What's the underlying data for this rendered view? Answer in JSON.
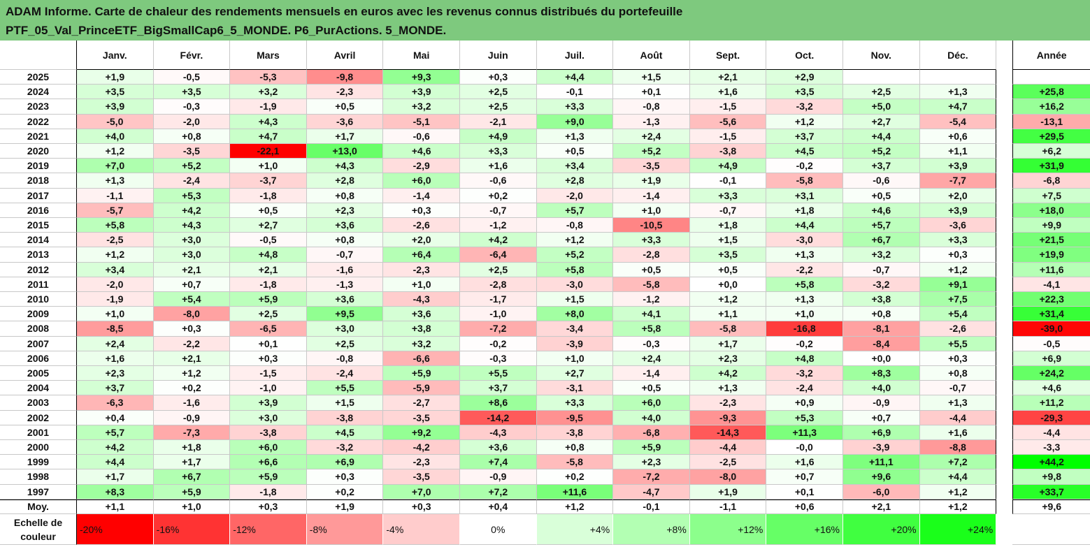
{
  "title": {
    "line1": "ADAM Informe. Carte de chaleur des rendements mensuels en euros avec les revenus connus distribués du portefeuille",
    "line2": "PTF_05_Val_PrinceETF_BigSmallCap6_5_MONDE. P6_PurActions. 5_MONDE."
  },
  "chart_data": {
    "type": "heatmap",
    "months": [
      "Janv.",
      "Févr.",
      "Mars",
      "Avril",
      "Mai",
      "Juin",
      "Juil.",
      "Août",
      "Sept.",
      "Oct.",
      "Nov.",
      "Déc."
    ],
    "year_header": "Année",
    "rows": [
      {
        "year": "2025",
        "values": [
          "+1,9",
          "-0,5",
          "-5,3",
          "-9,8",
          "+9,3",
          "+0,3",
          "+4,4",
          "+1,5",
          "+2,1",
          "+2,9",
          "",
          ""
        ],
        "annual": ""
      },
      {
        "year": "2024",
        "values": [
          "+3,5",
          "+3,5",
          "+3,2",
          "-2,3",
          "+3,9",
          "+2,5",
          "-0,1",
          "+0,1",
          "+1,6",
          "+3,5",
          "+2,5",
          "+1,3"
        ],
        "annual": "+25,8"
      },
      {
        "year": "2023",
        "values": [
          "+3,9",
          "-0,3",
          "-1,9",
          "+0,5",
          "+3,2",
          "+2,5",
          "+3,3",
          "-0,8",
          "-1,5",
          "-3,2",
          "+5,0",
          "+4,7"
        ],
        "annual": "+16,2"
      },
      {
        "year": "2022",
        "values": [
          "-5,0",
          "-2,0",
          "+4,3",
          "-3,6",
          "-5,1",
          "-2,1",
          "+9,0",
          "-1,3",
          "-5,6",
          "+1,2",
          "+2,7",
          "-5,4"
        ],
        "annual": "-13,1"
      },
      {
        "year": "2021",
        "values": [
          "+4,0",
          "+0,8",
          "+4,7",
          "+1,7",
          "-0,6",
          "+4,9",
          "+1,3",
          "+2,4",
          "-1,5",
          "+3,7",
          "+4,4",
          "+0,6"
        ],
        "annual": "+29,5"
      },
      {
        "year": "2020",
        "values": [
          "+1,2",
          "-3,5",
          "-22,1",
          "+13,0",
          "+4,6",
          "+3,3",
          "+0,5",
          "+5,2",
          "-3,8",
          "+4,5",
          "+5,2",
          "+1,1"
        ],
        "annual": "+6,2"
      },
      {
        "year": "2019",
        "values": [
          "+7,0",
          "+5,2",
          "+1,0",
          "+4,3",
          "-2,9",
          "+1,6",
          "+3,4",
          "-3,5",
          "+4,9",
          "-0,2",
          "+3,7",
          "+3,9"
        ],
        "annual": "+31,9"
      },
      {
        "year": "2018",
        "values": [
          "+1,3",
          "-2,4",
          "-3,7",
          "+2,8",
          "+6,0",
          "-0,6",
          "+2,8",
          "+1,9",
          "-0,1",
          "-5,8",
          "-0,6",
          "-7,7"
        ],
        "annual": "-6,8"
      },
      {
        "year": "2017",
        "values": [
          "-1,1",
          "+5,3",
          "-1,8",
          "+0,8",
          "-1,4",
          "+0,2",
          "-2,0",
          "-1,4",
          "+3,3",
          "+3,1",
          "+0,5",
          "+2,0"
        ],
        "annual": "+7,5"
      },
      {
        "year": "2016",
        "values": [
          "-5,7",
          "+4,2",
          "+0,5",
          "+2,3",
          "+0,3",
          "-0,7",
          "+5,7",
          "+1,0",
          "-0,7",
          "+1,8",
          "+4,6",
          "+3,9"
        ],
        "annual": "+18,0"
      },
      {
        "year": "2015",
        "values": [
          "+5,8",
          "+4,3",
          "+2,7",
          "+3,6",
          "-2,6",
          "-1,2",
          "-0,8",
          "-10,5",
          "+1,8",
          "+4,4",
          "+5,7",
          "-3,6"
        ],
        "annual": "+9,9"
      },
      {
        "year": "2014",
        "values": [
          "-2,5",
          "+3,0",
          "-0,5",
          "+0,8",
          "+2,0",
          "+4,2",
          "+1,2",
          "+3,3",
          "+1,5",
          "-3,0",
          "+6,7",
          "+3,3"
        ],
        "annual": "+21,5"
      },
      {
        "year": "2013",
        "values": [
          "+1,2",
          "+3,0",
          "+4,8",
          "-0,7",
          "+6,4",
          "-6,4",
          "+5,2",
          "-2,8",
          "+3,5",
          "+1,3",
          "+3,2",
          "+0,3"
        ],
        "annual": "+19,9"
      },
      {
        "year": "2012",
        "values": [
          "+3,4",
          "+2,1",
          "+2,1",
          "-1,6",
          "-2,3",
          "+2,5",
          "+5,8",
          "+0,5",
          "+0,5",
          "-2,2",
          "-0,7",
          "+1,2"
        ],
        "annual": "+11,6"
      },
      {
        "year": "2011",
        "values": [
          "-2,0",
          "+0,7",
          "-1,8",
          "-1,3",
          "+1,0",
          "-2,8",
          "-3,0",
          "-5,8",
          "+0,0",
          "+5,8",
          "-3,2",
          "+9,1"
        ],
        "annual": "-4,1"
      },
      {
        "year": "2010",
        "values": [
          "-1,9",
          "+5,4",
          "+5,9",
          "+3,6",
          "-4,3",
          "-1,7",
          "+1,5",
          "-1,2",
          "+1,2",
          "+1,3",
          "+3,8",
          "+7,5"
        ],
        "annual": "+22,3"
      },
      {
        "year": "2009",
        "values": [
          "+1,0",
          "-8,0",
          "+2,5",
          "+9,5",
          "+3,6",
          "-1,0",
          "+8,0",
          "+4,1",
          "+1,1",
          "+1,0",
          "+0,8",
          "+5,4"
        ],
        "annual": "+31,4"
      },
      {
        "year": "2008",
        "values": [
          "-8,5",
          "+0,3",
          "-6,5",
          "+3,0",
          "+3,8",
          "-7,2",
          "-3,4",
          "+5,8",
          "-5,8",
          "-16,8",
          "-8,1",
          "-2,6"
        ],
        "annual": "-39,0"
      },
      {
        "year": "2007",
        "values": [
          "+2,4",
          "-2,2",
          "+0,1",
          "+2,5",
          "+3,2",
          "-0,2",
          "-3,9",
          "-0,3",
          "+1,7",
          "-0,2",
          "-8,4",
          "+5,5"
        ],
        "annual": "-0,5"
      },
      {
        "year": "2006",
        "values": [
          "+1,6",
          "+2,1",
          "+0,3",
          "-0,8",
          "-6,6",
          "-0,3",
          "+1,0",
          "+2,4",
          "+2,3",
          "+4,8",
          "+0,0",
          "+0,3"
        ],
        "annual": "+6,9"
      },
      {
        "year": "2005",
        "values": [
          "+2,3",
          "+1,2",
          "-1,5",
          "-2,4",
          "+5,9",
          "+5,5",
          "+2,7",
          "-1,4",
          "+4,2",
          "-3,2",
          "+8,3",
          "+0,8"
        ],
        "annual": "+24,2"
      },
      {
        "year": "2004",
        "values": [
          "+3,7",
          "+0,2",
          "-1,0",
          "+5,5",
          "-5,9",
          "+3,7",
          "-3,1",
          "+0,5",
          "+1,3",
          "-2,4",
          "+4,0",
          "-0,7"
        ],
        "annual": "+4,6"
      },
      {
        "year": "2003",
        "values": [
          "-6,3",
          "-1,6",
          "+3,9",
          "+1,5",
          "-2,7",
          "+8,6",
          "+3,3",
          "+6,0",
          "-2,3",
          "+0,9",
          "-0,9",
          "+1,3"
        ],
        "annual": "+11,2"
      },
      {
        "year": "2002",
        "values": [
          "+0,4",
          "-0,9",
          "+3,0",
          "-3,8",
          "-3,5",
          "-14,2",
          "-9,5",
          "+4,0",
          "-9,3",
          "+5,3",
          "+0,7",
          "-4,4"
        ],
        "annual": "-29,3"
      },
      {
        "year": "2001",
        "values": [
          "+5,7",
          "-7,3",
          "-3,8",
          "+4,5",
          "+9,2",
          "-4,3",
          "-3,8",
          "-6,8",
          "-14,3",
          "+11,3",
          "+6,9",
          "+1,6"
        ],
        "annual": "-4,4"
      },
      {
        "year": "2000",
        "values": [
          "+4,2",
          "+1,8",
          "+6,0",
          "-3,2",
          "-4,2",
          "+3,6",
          "+0,8",
          "+5,9",
          "-4,4",
          "-0,0",
          "-3,9",
          "-8,8"
        ],
        "annual": "-3,3"
      },
      {
        "year": "1999",
        "values": [
          "+4,4",
          "+1,7",
          "+6,6",
          "+6,9",
          "-2,3",
          "+7,4",
          "-5,8",
          "+2,3",
          "-2,5",
          "+1,6",
          "+11,1",
          "+7,2"
        ],
        "annual": "+44,2"
      },
      {
        "year": "1998",
        "values": [
          "+1,7",
          "+6,7",
          "+5,9",
          "+0,3",
          "-3,5",
          "-0,9",
          "+0,2",
          "-7,2",
          "-8,0",
          "+0,7",
          "+9,6",
          "+4,4"
        ],
        "annual": "+9,8"
      },
      {
        "year": "1997",
        "values": [
          "+8,3",
          "+5,9",
          "-1,8",
          "+0,2",
          "+7,0",
          "+7,2",
          "+11,6",
          "-4,7",
          "+1,9",
          "+0,1",
          "-6,0",
          "+1,2"
        ],
        "annual": "+33,7"
      },
      {
        "year": "Moy.",
        "values": [
          "+1,1",
          "+1,0",
          "+0,3",
          "+1,9",
          "+0,3",
          "+0,4",
          "+1,2",
          "-0,1",
          "-1,1",
          "+0,6",
          "+2,1",
          "+1,2"
        ],
        "annual": "+9,6"
      }
    ],
    "scale": {
      "label_line1": "Echelle de",
      "label_line2": "couleur",
      "items": [
        {
          "text": "-20%",
          "align": "left",
          "color": "#ff0000"
        },
        {
          "text": "-16%",
          "align": "left",
          "color": "#ff3333"
        },
        {
          "text": "-12%",
          "align": "left",
          "color": "#ff6666"
        },
        {
          "text": "-8%",
          "align": "left",
          "color": "#ff9999"
        },
        {
          "text": "-4%",
          "align": "left",
          "color": "#ffcccc"
        },
        {
          "text": "0%",
          "align": "center",
          "color": "#ffffff"
        },
        {
          "text": "+4%",
          "align": "right",
          "color": "#d9ffd9"
        },
        {
          "text": "+8%",
          "align": "right",
          "color": "#b3ffb3"
        },
        {
          "text": "+12%",
          "align": "right",
          "color": "#8cff8c"
        },
        {
          "text": "+16%",
          "align": "right",
          "color": "#66ff66"
        },
        {
          "text": "+20%",
          "align": "right",
          "color": "#40ff40"
        },
        {
          "text": "+24%",
          "align": "right",
          "color": "#1aff1a"
        }
      ]
    },
    "colors": {
      "title_bg": "#7ec97e",
      "negative_max": "#ff0000",
      "positive_max": "#00ff00",
      "neutral": "#ffffff"
    }
  }
}
